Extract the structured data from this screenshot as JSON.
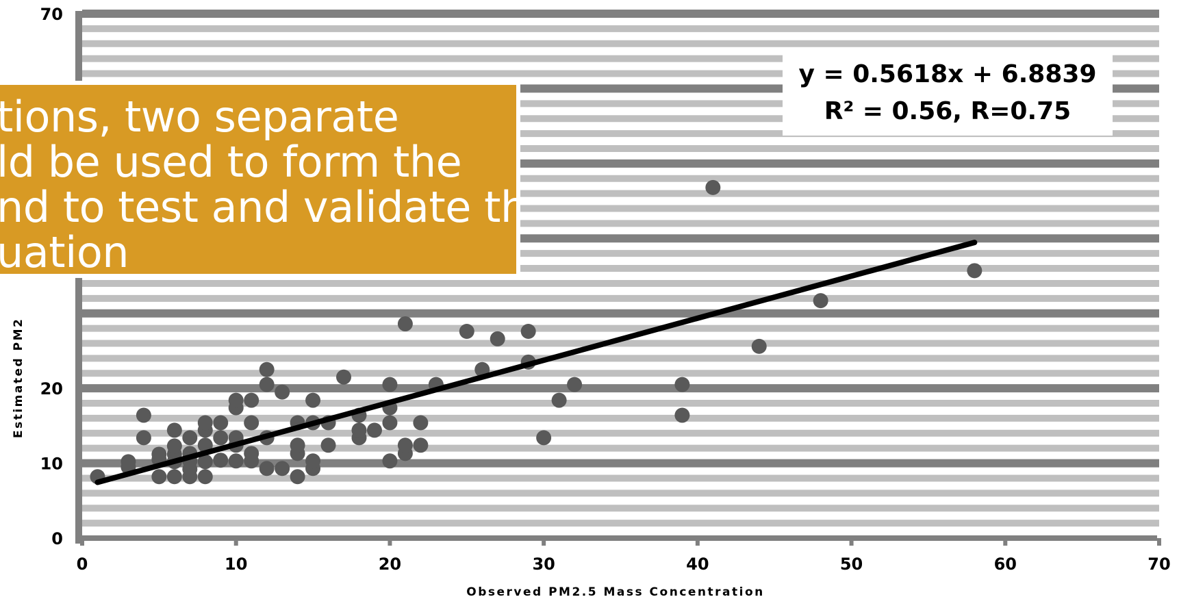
{
  "chart_data": {
    "type": "scatter",
    "title": "",
    "xlabel": "Observed PM2.5 Mass Concentration",
    "ylabel": "Estimated PM2",
    "xlim": [
      0,
      70
    ],
    "ylim": [
      0,
      70
    ],
    "x_ticks": [
      "0",
      "10",
      "20",
      "30",
      "40",
      "50",
      "60",
      "70"
    ],
    "y_ticks": [
      "0",
      "10",
      "20",
      "70"
    ],
    "grid": true,
    "colors": {
      "points": "#595959",
      "trendline": "#000000",
      "grid_dark": "#808080",
      "grid_light": "#bfbfbf"
    },
    "points": [
      [
        1,
        8.2
      ],
      [
        3,
        9.5
      ],
      [
        3,
        10.2
      ],
      [
        4,
        13.4
      ],
      [
        4,
        16.4
      ],
      [
        5,
        8.2
      ],
      [
        5,
        10.5
      ],
      [
        5,
        11.2
      ],
      [
        6,
        8.2
      ],
      [
        6,
        10.2
      ],
      [
        6,
        11.2
      ],
      [
        6,
        12.3
      ],
      [
        6,
        14.4
      ],
      [
        7,
        8.2
      ],
      [
        7,
        9.2
      ],
      [
        7,
        10.3
      ],
      [
        7,
        11.3
      ],
      [
        7,
        13.4
      ],
      [
        8,
        8.2
      ],
      [
        8,
        10.2
      ],
      [
        8,
        12.4
      ],
      [
        8,
        14.4
      ],
      [
        8,
        15.4
      ],
      [
        9,
        10.4
      ],
      [
        9,
        13.4
      ],
      [
        9,
        15.4
      ],
      [
        10,
        10.3
      ],
      [
        10,
        12.4
      ],
      [
        10,
        13.4
      ],
      [
        10,
        17.4
      ],
      [
        10,
        18.4
      ],
      [
        11,
        10.3
      ],
      [
        11,
        11.3
      ],
      [
        11,
        15.4
      ],
      [
        11,
        18.4
      ],
      [
        12,
        9.3
      ],
      [
        12,
        13.4
      ],
      [
        12,
        20.5
      ],
      [
        12,
        22.5
      ],
      [
        13,
        9.3
      ],
      [
        13,
        19.5
      ],
      [
        14,
        8.2
      ],
      [
        14,
        11.3
      ],
      [
        14,
        12.4
      ],
      [
        14,
        15.4
      ],
      [
        15,
        9.3
      ],
      [
        15,
        10.3
      ],
      [
        15,
        15.4
      ],
      [
        15,
        18.4
      ],
      [
        16,
        12.4
      ],
      [
        16,
        15.4
      ],
      [
        17,
        21.5
      ],
      [
        18,
        13.4
      ],
      [
        18,
        14.4
      ],
      [
        18,
        16.4
      ],
      [
        19,
        14.4
      ],
      [
        20,
        10.3
      ],
      [
        20,
        15.4
      ],
      [
        20,
        17.4
      ],
      [
        20,
        20.5
      ],
      [
        21,
        11.3
      ],
      [
        21,
        12.4
      ],
      [
        21,
        28.6
      ],
      [
        22,
        12.4
      ],
      [
        22,
        15.4
      ],
      [
        23,
        20.5
      ],
      [
        25,
        27.6
      ],
      [
        26,
        22.5
      ],
      [
        27,
        26.6
      ],
      [
        29,
        23.5
      ],
      [
        29,
        27.6
      ],
      [
        30,
        13.4
      ],
      [
        31,
        18.4
      ],
      [
        32,
        20.5
      ],
      [
        39,
        16.4
      ],
      [
        39,
        20.5
      ],
      [
        41,
        46.8
      ],
      [
        44,
        25.6
      ],
      [
        48,
        31.7
      ],
      [
        58,
        35.7
      ]
    ],
    "trendline": {
      "type": "linear",
      "slope": 0.5618,
      "intercept": 6.8839,
      "x_range": [
        1,
        58
      ]
    },
    "annotation": {
      "line1": "y = 0.5618x + 6.8839",
      "line2": "R² = 0.56, R=0.75"
    }
  },
  "overlay": {
    "text": "tions, two separate\nld be used to form the\nnd to test and validate the\nuation",
    "background": "#d89a24"
  }
}
